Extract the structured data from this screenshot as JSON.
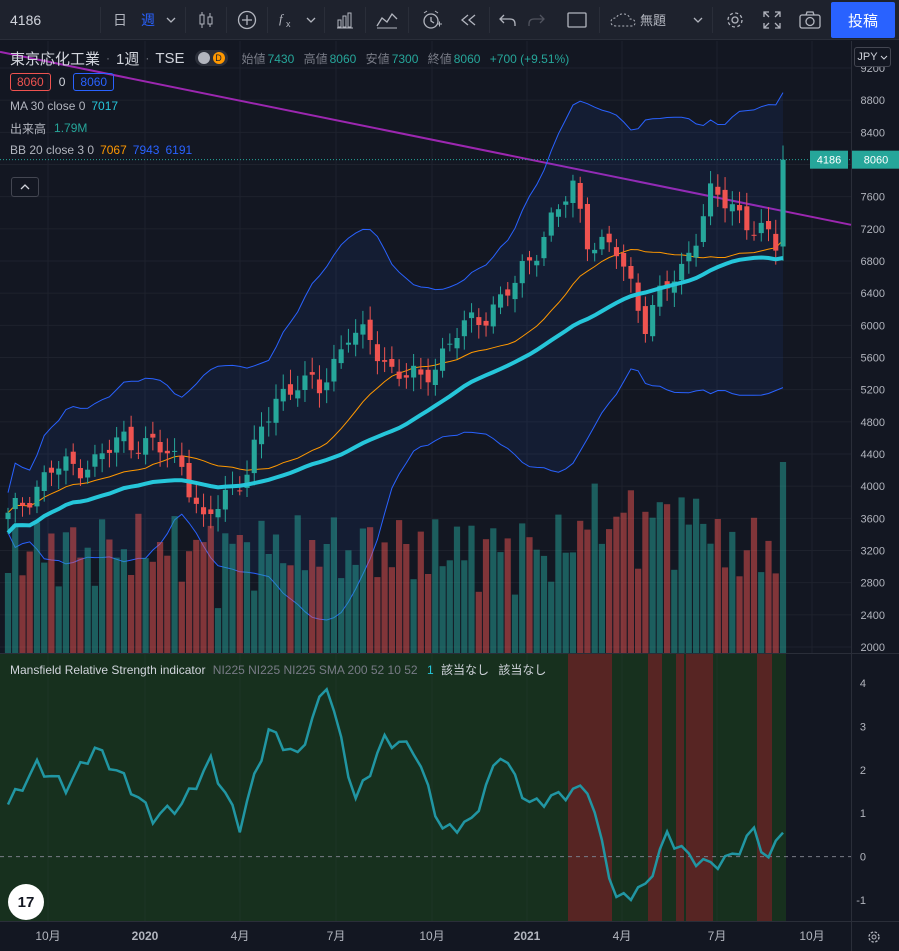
{
  "toolbar": {
    "symbol": "4186",
    "interval_day": "日",
    "interval_week": "週",
    "template": "無題",
    "publish": "投稿"
  },
  "legend": {
    "title": "東京応化工業",
    "separator": "·",
    "interval": "1週",
    "exchange": "TSE",
    "dot_label": "D",
    "open_label": "始値",
    "open": "7430",
    "high_label": "高値",
    "high": "8060",
    "low_label": "安値",
    "low": "7300",
    "close_label": "終値",
    "close": "8060",
    "change": "+700 (+9.51%)",
    "bid": "8060",
    "spread": "0",
    "ask": "8060",
    "ma_label": "MA 30 close 0",
    "ma_value": "7017",
    "vol_label": "出来高",
    "vol_value": "1.79M",
    "bb_label": "BB 20 close 3 0",
    "bb_basis": "7067",
    "bb_upper": "7943",
    "bb_lower": "6191"
  },
  "indicator": {
    "title": "Mansfield Relative Strength indicator",
    "params": "NI225 NI225 NI225 SMA 200 52 10 52",
    "param1": "1",
    "na1": "該当なし",
    "na2": "該当なし"
  },
  "price_scale": {
    "currency": "JPY",
    "labels": [
      "9200",
      "8800",
      "8400",
      "8000",
      "7600",
      "7200",
      "6800",
      "6400",
      "6000",
      "5600",
      "5200",
      "4800",
      "4400",
      "4000",
      "3600",
      "3200",
      "2800",
      "2400",
      "2000"
    ],
    "last_price": "8060",
    "countdown": "4186"
  },
  "rs_scale": {
    "labels": [
      "4",
      "3",
      "2",
      "1",
      "0",
      "-1"
    ]
  },
  "time_scale": {
    "labels": [
      "10月",
      "2020",
      "4月",
      "7月",
      "10月",
      "2021",
      "4月",
      "7月",
      "10月"
    ]
  },
  "colors": {
    "up": "#26a69a",
    "down": "#ef5350",
    "ma": "#26c6da",
    "bb_basis": "#ff9800",
    "bb_band": "#2962ff",
    "trendline": "#9c27b0",
    "rs_line": "#2196a3",
    "accent": "#2962ff"
  },
  "icons": [
    "candles-icon",
    "indicator-icon",
    "compare-icon",
    "alert-icon",
    "replay-icon",
    "undo-icon",
    "redo-icon",
    "layout-icon",
    "cloud-icon",
    "settings-icon",
    "fullscreen-icon",
    "snapshot-icon"
  ]
}
